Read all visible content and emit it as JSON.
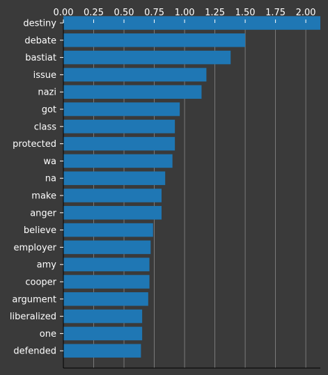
{
  "chart_data": {
    "type": "bar",
    "orientation": "horizontal",
    "categories": [
      "destiny",
      "debate",
      "bastiat",
      "issue",
      "nazi",
      "got",
      "class",
      "protected",
      "wa",
      "na",
      "make",
      "anger",
      "believe",
      "employer",
      "amy",
      "cooper",
      "argument",
      "liberalized",
      "one",
      "defended"
    ],
    "values": [
      2.12,
      1.5,
      1.38,
      1.18,
      1.14,
      0.96,
      0.92,
      0.92,
      0.9,
      0.84,
      0.81,
      0.81,
      0.74,
      0.72,
      0.71,
      0.71,
      0.7,
      0.65,
      0.65,
      0.64
    ],
    "xticks": [
      "0.00",
      "0.25",
      "0.50",
      "0.75",
      "1.00",
      "1.25",
      "1.50",
      "1.75",
      "2.00"
    ],
    "xlim": [
      0,
      2.12
    ],
    "x_axis_position": "top",
    "grid": "vertical",
    "title": "",
    "xlabel": "",
    "ylabel": "",
    "colors": {
      "background": "#3a3a3a",
      "bar": "#1f77b4",
      "text": "#ffffff",
      "grid": "#8a8a8a",
      "axis": "#000000"
    }
  }
}
